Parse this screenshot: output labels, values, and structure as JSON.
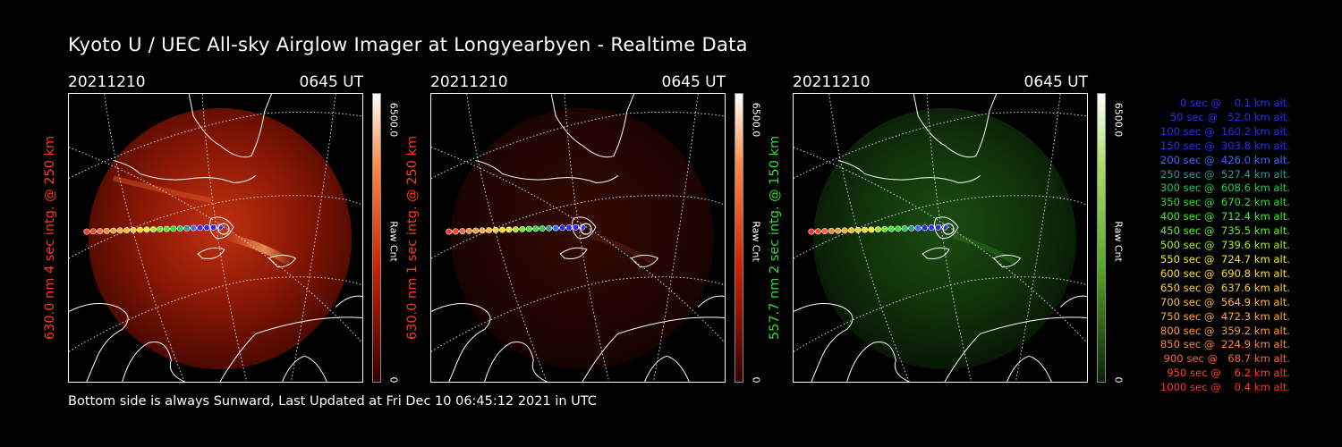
{
  "title": "Kyoto U / UEC All-sky Airglow Imager at Longyearbyen - Realtime Data",
  "footer": "Bottom side is always Sunward, Last Updated at Fri Dec 10 06:45:12 2021 in UTC",
  "panels": [
    {
      "date": "20211210",
      "time": "0645 UT",
      "ylabel": "630.0 nm 4 sec intg. @ 250 km",
      "ylabel_color": "#ff3a1a",
      "cb_max": "6500.0",
      "cb_min": "0",
      "cb_unit": "Raw Cnt",
      "theme": "red"
    },
    {
      "date": "20211210",
      "time": "0645 UT",
      "ylabel": "630.0 nm 1 sec intg. @ 250 km",
      "ylabel_color": "#ff3a1a",
      "cb_max": "6500.0",
      "cb_min": "0",
      "cb_unit": "Raw Cnt",
      "theme": "dimred"
    },
    {
      "date": "20211210",
      "time": "0645 UT",
      "ylabel": "557.7 nm 2 sec intg. @ 150 km",
      "ylabel_color": "#33dd33",
      "cb_max": "6500.0",
      "cb_min": "0",
      "cb_unit": "Raw Cnt",
      "theme": "green"
    }
  ],
  "legend": [
    {
      "text": "   0 sec @    0.1 km alt.",
      "color": "#2a2aff"
    },
    {
      "text": "  50 sec @   52.0 km alt.",
      "color": "#2a2aff"
    },
    {
      "text": " 100 sec @  160.2 km alt.",
      "color": "#2a2aff"
    },
    {
      "text": " 150 sec @  303.8 km alt.",
      "color": "#2a2aff"
    },
    {
      "text": " 200 sec @  426.0 km alt.",
      "color": "#3a6aff"
    },
    {
      "text": " 250 sec @  527.4 km alt.",
      "color": "#2a9a9a"
    },
    {
      "text": " 300 sec @  608.6 km alt.",
      "color": "#22cc55"
    },
    {
      "text": " 350 sec @  670.2 km alt.",
      "color": "#33dd33"
    },
    {
      "text": " 400 sec @  712.4 km alt.",
      "color": "#44ee22"
    },
    {
      "text": " 450 sec @  735.5 km alt.",
      "color": "#66ee22"
    },
    {
      "text": " 500 sec @  739.6 km alt.",
      "color": "#aaee22"
    },
    {
      "text": " 550 sec @  724.7 km alt.",
      "color": "#eeee22"
    },
    {
      "text": " 600 sec @  690.8 km alt.",
      "color": "#ffdd22"
    },
    {
      "text": " 650 sec @  637.6 km alt.",
      "color": "#ffcc33"
    },
    {
      "text": " 700 sec @  564.9 km alt.",
      "color": "#ffbb33"
    },
    {
      "text": " 750 sec @  472.3 km alt.",
      "color": "#ffaa33"
    },
    {
      "text": " 800 sec @  359.2 km alt.",
      "color": "#ff9933"
    },
    {
      "text": " 850 sec @  224.9 km alt.",
      "color": "#ff8833"
    },
    {
      "text": " 900 sec @   68.7 km alt.",
      "color": "#ff6633"
    },
    {
      "text": " 950 sec @    6.2 km alt.",
      "color": "#ff4422"
    },
    {
      "text": "1000 sec @    0.4 km alt.",
      "color": "#ff3322"
    }
  ]
}
